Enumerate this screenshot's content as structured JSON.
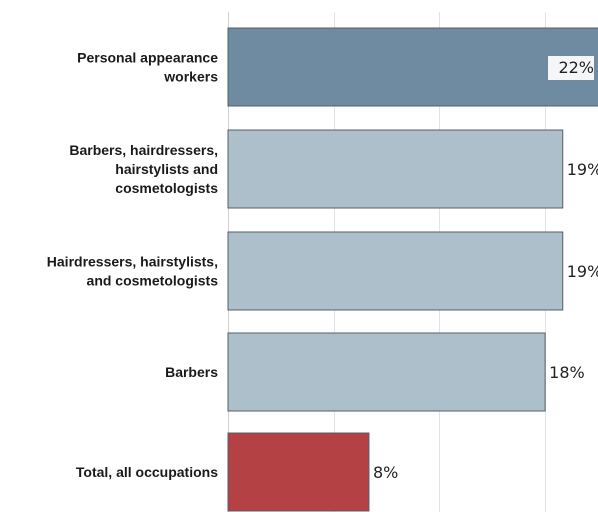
{
  "chart_data": {
    "type": "bar",
    "orientation": "horizontal",
    "title": "",
    "xlabel": "",
    "ylabel": "",
    "categories": [
      "Personal appearance workers",
      "Barbers, hairdressers, hairstylists and cosmetologists",
      "Hairdressers, hairstylists, and cosmetologists",
      "Barbers",
      "Total, all occupations"
    ],
    "category_label_lines": [
      [
        "Personal appearance",
        "workers"
      ],
      [
        "Barbers, hairdressers,",
        "hairstylists and",
        "cosmetologists"
      ],
      [
        "Hairdressers, hairstylists,",
        "and cosmetologists"
      ],
      [
        "Barbers"
      ],
      [
        "Total, all occupations"
      ]
    ],
    "values": [
      22,
      19,
      19,
      18,
      8
    ],
    "value_labels": [
      "22%",
      "19%",
      "19%",
      "18%",
      "8%"
    ],
    "bar_colors": [
      "#6e8ba2",
      "#adbfcb",
      "#adbfcb",
      "#adbfcb",
      "#b44244"
    ],
    "xlim": [
      0,
      21
    ],
    "x_gridlines": [
      0,
      6,
      12,
      18
    ],
    "grid": true,
    "legend": "none"
  }
}
